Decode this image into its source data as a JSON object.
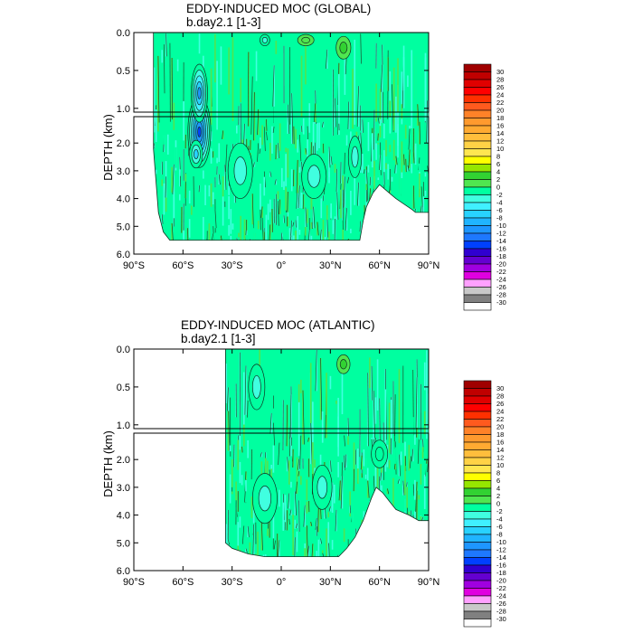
{
  "chart_data": [
    {
      "type": "heatmap",
      "title": "EDDY-INDUCED MOC (GLOBAL)",
      "subtitle": "b.day2.1 [1-3]",
      "ylabel": "DEPTH (km)",
      "x_ticks": [
        "90°S",
        "60°S",
        "30°S",
        "0°",
        "30°N",
        "60°N",
        "90°N"
      ],
      "x_values": [
        -90,
        -60,
        -30,
        0,
        30,
        60,
        90
      ],
      "xlim": [
        -90,
        90
      ],
      "y_ticks_upper": [
        "0.0",
        "0.5",
        "1.0"
      ],
      "y_values_upper": [
        0.0,
        0.5,
        1.0
      ],
      "y_ticks_lower": [
        "2.0",
        "3.0",
        "4.0",
        "5.0",
        "6.0"
      ],
      "y_values_lower": [
        2.0,
        3.0,
        4.0,
        5.0,
        6.0
      ],
      "ylim_upper": [
        0.0,
        1.05
      ],
      "ylim_lower": [
        1.05,
        6.0
      ],
      "ocean_extent": {
        "lat_start": -78,
        "lat_end": 90,
        "bottom": [
          [
            -78,
            2.2
          ],
          [
            -75,
            4.5
          ],
          [
            -72,
            5.2
          ],
          [
            -68,
            5.5
          ],
          [
            -30,
            5.5
          ],
          [
            0,
            5.5
          ],
          [
            30,
            5.5
          ],
          [
            48,
            5.5
          ],
          [
            50,
            4.8
          ],
          [
            52,
            4.3
          ],
          [
            56,
            3.8
          ],
          [
            60,
            3.5
          ],
          [
            66,
            3.8
          ],
          [
            70,
            4.0
          ],
          [
            80,
            4.4
          ],
          [
            82,
            4.5
          ],
          [
            90,
            4.5
          ]
        ]
      },
      "features": [
        {
          "lat": -50,
          "depth": 1.6,
          "w": 14,
          "h": 1.8,
          "value": -14
        },
        {
          "lat": -50,
          "depth": 0.8,
          "w": 10,
          "h": 0.8,
          "value": -10
        },
        {
          "lat": -52,
          "depth": 2.4,
          "w": 8,
          "h": 1.0,
          "value": -6
        },
        {
          "lat": -25,
          "depth": 3.0,
          "w": 15,
          "h": 2.0,
          "value": -3
        },
        {
          "lat": 20,
          "depth": 3.2,
          "w": 15,
          "h": 1.6,
          "value": -2
        },
        {
          "lat": 45,
          "depth": 2.5,
          "w": 8,
          "h": 1.5,
          "value": -2
        },
        {
          "lat": 38,
          "depth": 0.2,
          "w": 9,
          "h": 0.3,
          "value": 3
        },
        {
          "lat": 15,
          "depth": 0.1,
          "w": 10,
          "h": 0.15,
          "value": 2
        },
        {
          "lat": -10,
          "depth": 0.1,
          "w": 6,
          "h": 0.15,
          "value": -2
        }
      ]
    },
    {
      "type": "heatmap",
      "title": "EDDY-INDUCED MOC (ATLANTIC)",
      "subtitle": "b.day2.1 [1-3]",
      "ylabel": "DEPTH (km)",
      "x_ticks": [
        "90°S",
        "60°S",
        "30°S",
        "0°",
        "30°N",
        "60°N",
        "90°N"
      ],
      "x_values": [
        -90,
        -60,
        -30,
        0,
        30,
        60,
        90
      ],
      "xlim": [
        -90,
        90
      ],
      "y_ticks_upper": [
        "0.0",
        "0.5",
        "1.0"
      ],
      "y_values_upper": [
        0.0,
        0.5,
        1.0
      ],
      "y_ticks_lower": [
        "2.0",
        "3.0",
        "4.0",
        "5.0",
        "6.0"
      ],
      "y_values_lower": [
        2.0,
        3.0,
        4.0,
        5.0,
        6.0
      ],
      "ylim_upper": [
        0.0,
        1.05
      ],
      "ylim_lower": [
        1.05,
        6.0
      ],
      "ocean_extent": {
        "lat_start": -34,
        "lat_end": 90,
        "bottom": [
          [
            -34,
            5.0
          ],
          [
            -30,
            5.2
          ],
          [
            -20,
            5.4
          ],
          [
            -10,
            5.5
          ],
          [
            20,
            5.5
          ],
          [
            35,
            5.5
          ],
          [
            40,
            5.2
          ],
          [
            45,
            4.8
          ],
          [
            50,
            4.2
          ],
          [
            55,
            3.4
          ],
          [
            58,
            3.0
          ],
          [
            62,
            3.2
          ],
          [
            66,
            3.5
          ],
          [
            70,
            3.8
          ],
          [
            78,
            4.0
          ],
          [
            84,
            4.2
          ],
          [
            90,
            4.2
          ]
        ]
      },
      "features": [
        {
          "lat": -10,
          "depth": 3.4,
          "w": 15,
          "h": 1.8,
          "value": -3
        },
        {
          "lat": 25,
          "depth": 3.0,
          "w": 12,
          "h": 1.6,
          "value": -3
        },
        {
          "lat": -15,
          "depth": 0.5,
          "w": 10,
          "h": 0.6,
          "value": -2
        },
        {
          "lat": 38,
          "depth": 0.2,
          "w": 8,
          "h": 0.25,
          "value": 3
        },
        {
          "lat": 60,
          "depth": 1.8,
          "w": 10,
          "h": 1.0,
          "value": -1
        }
      ]
    }
  ],
  "colorbar": {
    "labels": [
      "30",
      "28",
      "26",
      "24",
      "22",
      "20",
      "18",
      "16",
      "14",
      "12",
      "10",
      "8",
      "6",
      "4",
      "2",
      "0",
      "-2",
      "-4",
      "-6",
      "-8",
      "-10",
      "-12",
      "-14",
      "-16",
      "-18",
      "-20",
      "-22",
      "-24",
      "-26",
      "-28",
      "-30"
    ],
    "colors": [
      "#a00000",
      "#c00000",
      "#e00000",
      "#ff0000",
      "#ff3000",
      "#ff5a1e",
      "#ff8228",
      "#ff9a2e",
      "#ffaa32",
      "#ffbe3c",
      "#ffd246",
      "#ffe650",
      "#ffff00",
      "#96e600",
      "#32d232",
      "#50e650",
      "#00ffa0",
      "#40ffe0",
      "#40f0ff",
      "#28d2ff",
      "#20b4ff",
      "#1e96ff",
      "#1e78ff",
      "#0040ff",
      "#3000d0",
      "#6400d0",
      "#a000e0",
      "#e000e0",
      "#ffa0ff",
      "#c8c8c8",
      "#808080",
      "#ffffff"
    ]
  }
}
